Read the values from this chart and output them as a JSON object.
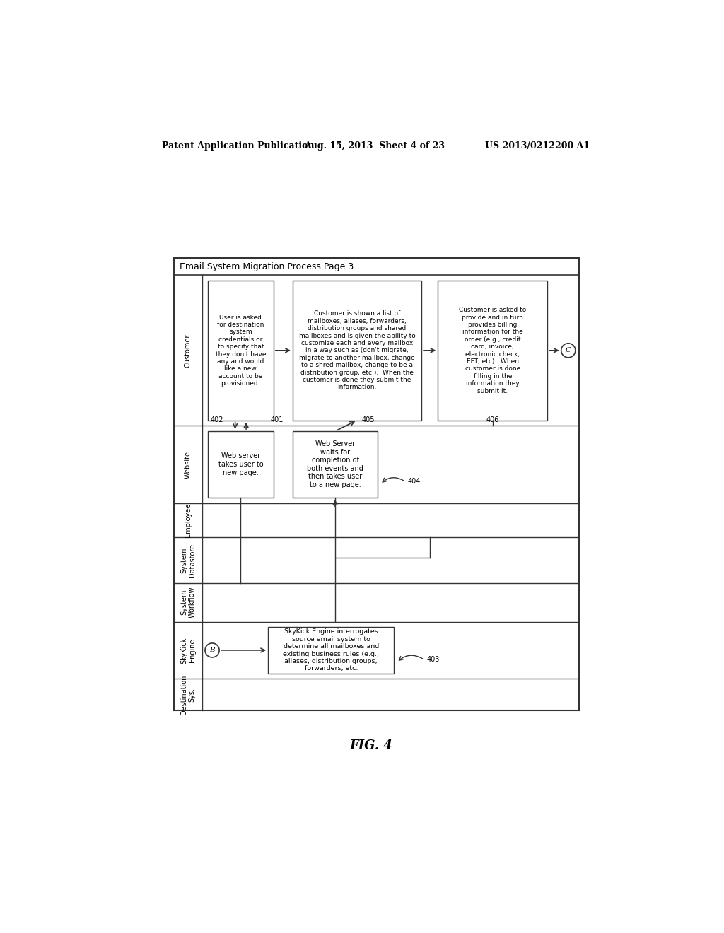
{
  "header_left": "Patent Application Publication",
  "header_mid": "Aug. 15, 2013  Sheet 4 of 23",
  "header_right": "US 2013/0212200 A1",
  "diagram_title": "Email System Migration Process Page 3",
  "fig_label": "FIG. 4",
  "row_labels": [
    "Customer",
    "Website",
    "Employee",
    "System\nDatastore",
    "System\nWorkflow",
    "SkyKick\nEngine",
    "Destination\nSys."
  ],
  "box1_text": "User is asked\nfor destination\nsystem\ncredentials or\nto specify that\nthey don't have\nany and would\nlike a new\naccount to be\nprovisioned.",
  "box2_text": "Customer is shown a list of\nmailboxes, aliases, forwarders,\ndistribution groups and shared\nmailboxes and is given the ability to\ncustomize each and every mailbox\nin a way such as (don't migrate,\nmigrate to another mailbox, change\nto a shred mailbox, change to be a\ndistribution group, etc.).  When the\ncustomer is done they submit the\ninformation.",
  "box3_text": "Customer is asked to\nprovide and in turn\nprovides billing\ninformation for the\norder (e.g., credit\ncard, invoice,\nelectronic check,\nEFT, etc).  When\ncustomer is done\nfilling in the\ninformation they\nsubmit it.",
  "box4_text": "Web server\ntakes user to\nnew page.",
  "box5_text": "Web Server\nwaits for\ncompletion of\nboth events and\nthen takes user\nto a new page.",
  "box6_text": "SkyKick Engine interrogates\nsource email system to\ndetermine all mailboxes and\nexisting business rules (e.g.,\naliases, distribution groups,\nforwarders, etc.",
  "label_401": "401",
  "label_402": "402",
  "label_403": "403",
  "label_404": "404",
  "label_405": "405",
  "label_406": "406",
  "circle_B": "B",
  "circle_C": "C"
}
